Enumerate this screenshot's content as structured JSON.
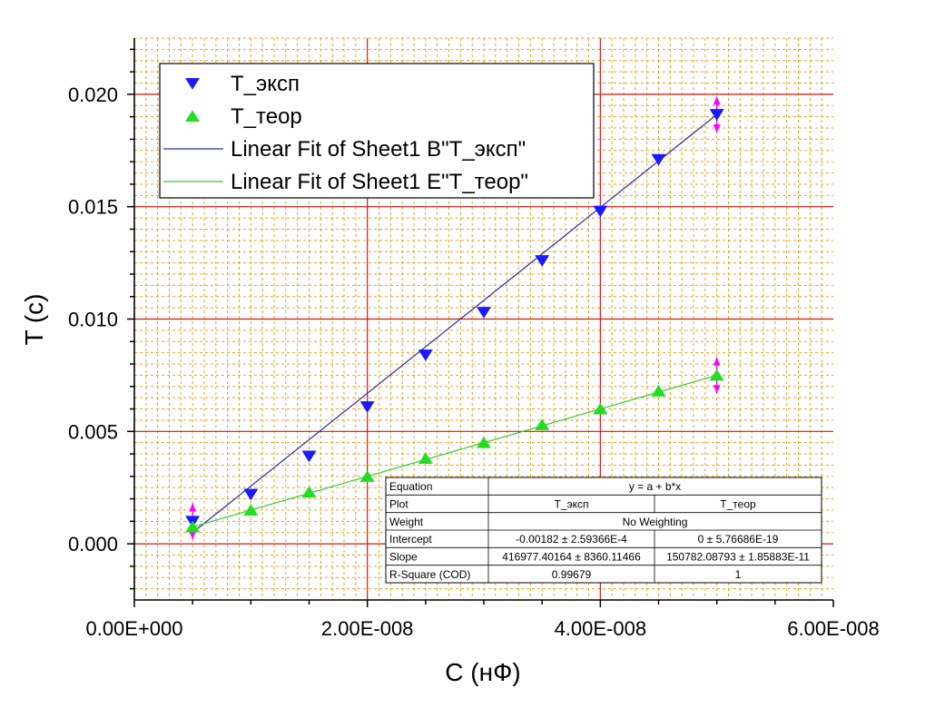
{
  "chart_data": {
    "type": "scatter",
    "xlabel": "C (нФ)",
    "ylabel": "T (c)",
    "xlim": [
      0,
      6e-08
    ],
    "ylim": [
      -0.0025,
      0.0225
    ],
    "x_tick_values": [
      0,
      2e-08,
      4e-08,
      6e-08
    ],
    "x_tick_labels": [
      "0.00E+000",
      "2.00E-008",
      "4.00E-008",
      "6.00E-008"
    ],
    "y_tick_values": [
      0,
      0.005,
      0.01,
      0.015,
      0.02
    ],
    "y_tick_labels": [
      "0.000",
      "0.005",
      "0.010",
      "0.015",
      "0.020"
    ],
    "grid": true,
    "legend_position": "top-left",
    "legend": [
      {
        "label": "T_эксп",
        "symbol": "triangle-down",
        "color": "#1a1aff"
      },
      {
        "label": "T_теор",
        "symbol": "triangle-up",
        "color": "#22dd22"
      },
      {
        "label": "Linear Fit of Sheet1 B\"T_эксп\"",
        "symbol": "line",
        "color": "#2b2bb0"
      },
      {
        "label": "Linear Fit of Sheet1 E\"T_теор\"",
        "symbol": "line",
        "color": "#33cc33"
      }
    ],
    "series": [
      {
        "name": "T_эксп",
        "color": "#1a1aff",
        "marker": "triangle-down",
        "x": [
          5e-09,
          1e-08,
          1.5e-08,
          2e-08,
          2.5e-08,
          3e-08,
          3.5e-08,
          4e-08,
          4.5e-08,
          5e-08
        ],
        "y": [
          0.001,
          0.0022,
          0.0039,
          0.0061,
          0.0084,
          0.0103,
          0.0126,
          0.0148,
          0.0171,
          0.0191
        ]
      },
      {
        "name": "T_теор",
        "color": "#22dd22",
        "marker": "triangle-up",
        "x": [
          5e-09,
          1e-08,
          1.5e-08,
          2e-08,
          2.5e-08,
          3e-08,
          3.5e-08,
          4e-08,
          4.5e-08,
          5e-08
        ],
        "y": [
          0.00075,
          0.0015,
          0.0023,
          0.003,
          0.0038,
          0.0045,
          0.0053,
          0.006,
          0.0068,
          0.0075
        ]
      }
    ],
    "fits": [
      {
        "name": "Linear Fit of Sheet1 B\"T_эксп\"",
        "color": "#2b2bb0",
        "x": [
          5e-09,
          5e-08
        ],
        "y": [
          0.0005,
          0.0191
        ]
      },
      {
        "name": "Linear Fit of Sheet1 E\"T_теор\"",
        "color": "#33cc33",
        "x": [
          5e-09,
          5e-08
        ],
        "y": [
          0.00075,
          0.0075
        ]
      }
    ],
    "error_marks": [
      {
        "x": 5e-09,
        "y": 0.001,
        "err": 0.0008
      },
      {
        "x": 5e-08,
        "y": 0.0191,
        "err": 0.0008
      },
      {
        "x": 5e-08,
        "y": 0.0075,
        "err": 0.0008
      }
    ],
    "error_color": "#ff00ff",
    "stats_table": {
      "rows": [
        [
          "Equation",
          "y = a + b*x",
          ""
        ],
        [
          "Plot",
          "T_эксп",
          "T_теор"
        ],
        [
          "Weight",
          "No Weighting",
          ""
        ],
        [
          "Intercept",
          "-0.00182 ± 2.59366E-4",
          "0 ± 5.76686E-19"
        ],
        [
          "Slope",
          "416977.40164 ± 8360.11466",
          "150782.08793 ± 1.85883E-11"
        ],
        [
          "R-Square (COD)",
          "0.99679",
          "1"
        ]
      ]
    },
    "colors": {
      "major_grid": "#dd1111",
      "minor_grid": "#e6a020",
      "axis": "#000000"
    }
  }
}
